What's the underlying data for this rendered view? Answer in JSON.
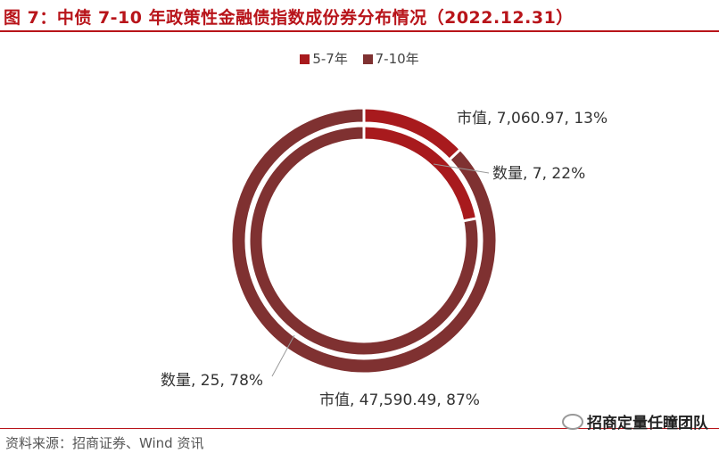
{
  "title": "图 7：中债 7-10 年政策性金融债指数成份券分布情况（2022.12.31）",
  "source": "资料来源：招商证券、Wind 资讯",
  "watermark": "招商定量任瞳团队",
  "colors": {
    "series_5_7": "#a81a1d",
    "series_7_10": "#7f3131",
    "title": "#b8141a",
    "gap": "#ffffff"
  },
  "chart_data": {
    "type": "pie",
    "subtype": "nested-donut",
    "legend": [
      "5-7年",
      "7-10年"
    ],
    "legend_position": "top-center",
    "rings": [
      {
        "ring": "outer",
        "measure": "市值",
        "slices": [
          {
            "category": "5-7年",
            "value": 7060.97,
            "percent": 13,
            "label": "市值, 7,060.97, 13%"
          },
          {
            "category": "7-10年",
            "value": 47590.49,
            "percent": 87,
            "label": "市值, 47,590.49, 87%"
          }
        ]
      },
      {
        "ring": "inner",
        "measure": "数量",
        "slices": [
          {
            "category": "5-7年",
            "value": 7,
            "percent": 22,
            "label": "数量, 7, 22%"
          },
          {
            "category": "7-10年",
            "value": 25,
            "percent": 78,
            "label": "数量, 25, 78%"
          }
        ]
      }
    ]
  }
}
